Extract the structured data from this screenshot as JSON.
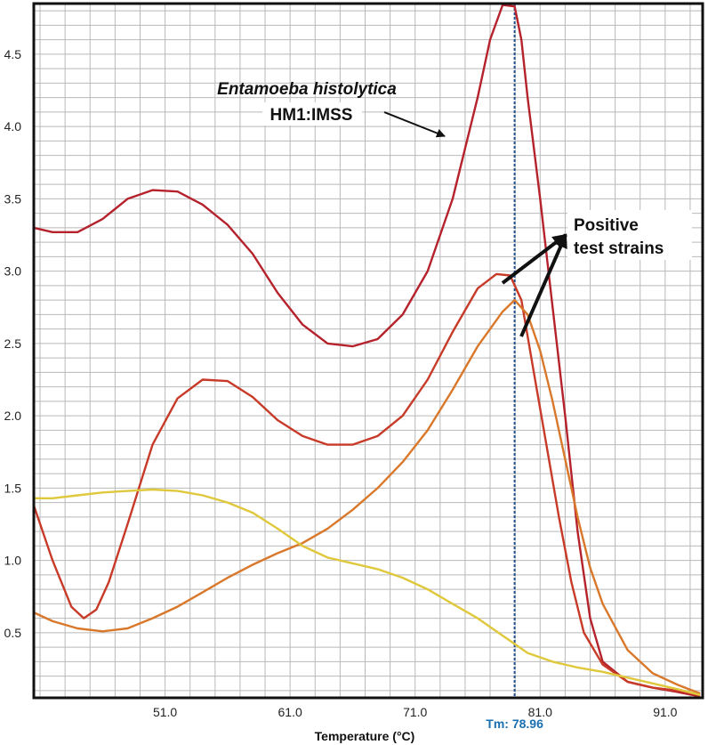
{
  "chart_data": {
    "type": "line",
    "xlabel": "Temperature (°C)",
    "ylabel": "",
    "xlim": [
      40.5,
      94.0
    ],
    "ylim": [
      0.05,
      4.85
    ],
    "xticks": [
      "51.0",
      "61.0",
      "71.0",
      "81.0",
      "91.0"
    ],
    "yticks": [
      "0.5",
      "1.0",
      "1.5",
      "2.0",
      "2.5",
      "3.0",
      "3.5",
      "4.0",
      "4.5"
    ],
    "grid": true,
    "tm_label": "Tm: 78.96",
    "tm_value": 78.96,
    "annotations": [
      {
        "text": "Entamoeba histolytica",
        "style": "italic"
      },
      {
        "text": "HM1:IMSS"
      },
      {
        "text": "Positive"
      },
      {
        "text": "test strains"
      }
    ],
    "series": [
      {
        "color": "#b5222c",
        "x": [
          40.5,
          42,
          44,
          46,
          48,
          50,
          52,
          54,
          56,
          58,
          60,
          62,
          64,
          66,
          68,
          70,
          72,
          74,
          76,
          77,
          78,
          78.96,
          79.5,
          80,
          81,
          82,
          83,
          84,
          85,
          86,
          88,
          90,
          92,
          93.8
        ],
        "y": [
          3.3,
          3.27,
          3.27,
          3.36,
          3.5,
          3.56,
          3.55,
          3.46,
          3.32,
          3.12,
          2.85,
          2.63,
          2.5,
          2.48,
          2.53,
          2.7,
          3.0,
          3.5,
          4.2,
          4.6,
          4.84,
          4.83,
          4.6,
          4.2,
          3.5,
          2.75,
          2.0,
          1.2,
          0.6,
          0.3,
          0.16,
          0.12,
          0.09,
          0.06
        ]
      },
      {
        "color": "#c83a28",
        "x": [
          40.5,
          42,
          43.5,
          44.5,
          45.5,
          46.5,
          48,
          50,
          52,
          54,
          56,
          58,
          60,
          62,
          64,
          66,
          68,
          70,
          72,
          74,
          76,
          77.5,
          78.6,
          79.5,
          80.5,
          81.5,
          82.5,
          83.5,
          84.5,
          86,
          88,
          90,
          92,
          93.8
        ],
        "y": [
          1.38,
          1.0,
          0.68,
          0.6,
          0.66,
          0.85,
          1.25,
          1.8,
          2.12,
          2.25,
          2.24,
          2.13,
          1.97,
          1.86,
          1.8,
          1.8,
          1.86,
          2.0,
          2.25,
          2.58,
          2.88,
          2.98,
          2.97,
          2.8,
          2.3,
          1.8,
          1.3,
          0.85,
          0.5,
          0.28,
          0.16,
          0.12,
          0.1,
          0.07
        ]
      },
      {
        "color": "#d9782a",
        "x": [
          40.5,
          42,
          44,
          46,
          48,
          50,
          52,
          54,
          56,
          58,
          60,
          62,
          64,
          66,
          68,
          70,
          72,
          74,
          76,
          78,
          78.96,
          80,
          81,
          82,
          83,
          84,
          85,
          86,
          88,
          90,
          92,
          93.8
        ],
        "y": [
          0.64,
          0.58,
          0.53,
          0.51,
          0.53,
          0.6,
          0.68,
          0.78,
          0.88,
          0.97,
          1.05,
          1.12,
          1.22,
          1.35,
          1.5,
          1.68,
          1.9,
          2.18,
          2.48,
          2.72,
          2.8,
          2.7,
          2.45,
          2.1,
          1.7,
          1.3,
          0.95,
          0.7,
          0.38,
          0.22,
          0.14,
          0.08
        ]
      },
      {
        "color": "#e0c83c",
        "x": [
          40.5,
          42,
          44,
          46,
          48,
          50,
          52,
          54,
          56,
          58,
          60,
          62,
          64,
          66,
          68,
          70,
          72,
          74,
          76,
          78,
          80,
          82,
          84,
          86,
          88,
          90,
          92,
          93.8
        ],
        "y": [
          1.43,
          1.43,
          1.45,
          1.47,
          1.48,
          1.49,
          1.48,
          1.45,
          1.4,
          1.33,
          1.22,
          1.1,
          1.02,
          0.98,
          0.94,
          0.88,
          0.8,
          0.7,
          0.6,
          0.48,
          0.36,
          0.3,
          0.26,
          0.23,
          0.19,
          0.15,
          0.11,
          0.07
        ]
      }
    ]
  }
}
